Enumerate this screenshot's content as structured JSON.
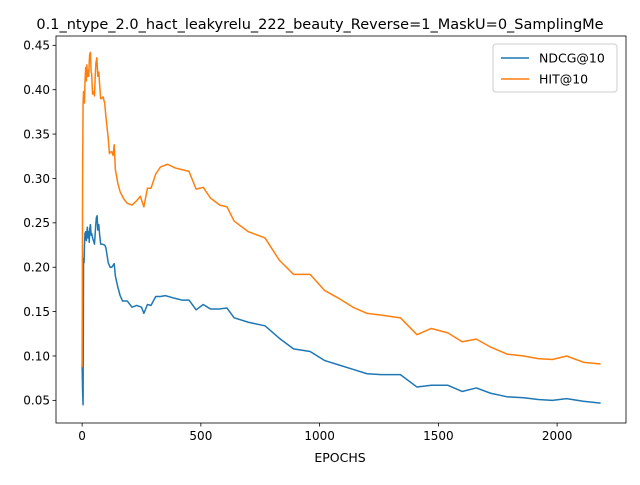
{
  "chart_data": {
    "type": "line",
    "title": "0.1_ntype_2.0_hact_leakyrelu_222_beauty_Reverse=1_MaskU=0_SamplingMe",
    "xlabel": "EPOCHS",
    "ylabel": "",
    "xlim": [
      -110,
      2290
    ],
    "ylim": [
      0.0245,
      0.4605
    ],
    "xticks": [
      0,
      500,
      1000,
      1500,
      2000
    ],
    "yticks": [
      0.05,
      0.1,
      0.15,
      0.2,
      0.25,
      0.3,
      0.35,
      0.4,
      0.45
    ],
    "grid": false,
    "legend_position": "top-right",
    "series": [
      {
        "name": "NDCG@10",
        "color": "#1f77b4",
        "points": [
          [
            0,
            0.09
          ],
          [
            2,
            0.06
          ],
          [
            4,
            0.045
          ],
          [
            6,
            0.21
          ],
          [
            8,
            0.205
          ],
          [
            10,
            0.225
          ],
          [
            12,
            0.238
          ],
          [
            15,
            0.24
          ],
          [
            18,
            0.23
          ],
          [
            20,
            0.238
          ],
          [
            22,
            0.245
          ],
          [
            25,
            0.233
          ],
          [
            28,
            0.24
          ],
          [
            30,
            0.228
          ],
          [
            32,
            0.243
          ],
          [
            35,
            0.248
          ],
          [
            38,
            0.236
          ],
          [
            40,
            0.238
          ],
          [
            45,
            0.232
          ],
          [
            50,
            0.228
          ],
          [
            52,
            0.226
          ],
          [
            55,
            0.238
          ],
          [
            58,
            0.25
          ],
          [
            60,
            0.256
          ],
          [
            63,
            0.258
          ],
          [
            66,
            0.242
          ],
          [
            70,
            0.248
          ],
          [
            74,
            0.236
          ],
          [
            78,
            0.226
          ],
          [
            85,
            0.226
          ],
          [
            95,
            0.225
          ],
          [
            100,
            0.222
          ],
          [
            110,
            0.205
          ],
          [
            118,
            0.2
          ],
          [
            125,
            0.2
          ],
          [
            130,
            0.202
          ],
          [
            135,
            0.204
          ],
          [
            140,
            0.19
          ],
          [
            150,
            0.178
          ],
          [
            160,
            0.168
          ],
          [
            170,
            0.162
          ],
          [
            190,
            0.162
          ],
          [
            210,
            0.155
          ],
          [
            230,
            0.157
          ],
          [
            250,
            0.155
          ],
          [
            260,
            0.148
          ],
          [
            275,
            0.158
          ],
          [
            290,
            0.157
          ],
          [
            310,
            0.167
          ],
          [
            330,
            0.167
          ],
          [
            350,
            0.168
          ],
          [
            390,
            0.165
          ],
          [
            420,
            0.163
          ],
          [
            450,
            0.163
          ],
          [
            480,
            0.152
          ],
          [
            510,
            0.158
          ],
          [
            540,
            0.153
          ],
          [
            580,
            0.153
          ],
          [
            610,
            0.154
          ],
          [
            640,
            0.143
          ],
          [
            700,
            0.138
          ],
          [
            770,
            0.134
          ],
          [
            830,
            0.12
          ],
          [
            890,
            0.108
          ],
          [
            960,
            0.105
          ],
          [
            1020,
            0.095
          ],
          [
            1080,
            0.09
          ],
          [
            1140,
            0.085
          ],
          [
            1200,
            0.08
          ],
          [
            1260,
            0.079
          ],
          [
            1340,
            0.079
          ],
          [
            1410,
            0.065
          ],
          [
            1470,
            0.067
          ],
          [
            1540,
            0.067
          ],
          [
            1600,
            0.06
          ],
          [
            1660,
            0.064
          ],
          [
            1720,
            0.058
          ],
          [
            1790,
            0.054
          ],
          [
            1860,
            0.053
          ],
          [
            1920,
            0.051
          ],
          [
            1980,
            0.05
          ],
          [
            2040,
            0.052
          ],
          [
            2110,
            0.049
          ],
          [
            2180,
            0.047
          ]
        ]
      },
      {
        "name": "HIT@10",
        "color": "#ff7f0e",
        "points": [
          [
            0,
            0.088
          ],
          [
            2,
            0.3
          ],
          [
            4,
            0.385
          ],
          [
            6,
            0.398
          ],
          [
            8,
            0.39
          ],
          [
            10,
            0.385
          ],
          [
            12,
            0.408
          ],
          [
            15,
            0.425
          ],
          [
            18,
            0.41
          ],
          [
            20,
            0.428
          ],
          [
            22,
            0.415
          ],
          [
            25,
            0.422
          ],
          [
            28,
            0.415
          ],
          [
            30,
            0.432
          ],
          [
            32,
            0.44
          ],
          [
            35,
            0.442
          ],
          [
            38,
            0.42
          ],
          [
            40,
            0.418
          ],
          [
            44,
            0.395
          ],
          [
            48,
            0.398
          ],
          [
            52,
            0.393
          ],
          [
            55,
            0.415
          ],
          [
            58,
            0.43
          ],
          [
            62,
            0.436
          ],
          [
            66,
            0.415
          ],
          [
            70,
            0.42
          ],
          [
            74,
            0.405
          ],
          [
            78,
            0.39
          ],
          [
            82,
            0.39
          ],
          [
            88,
            0.392
          ],
          [
            95,
            0.385
          ],
          [
            100,
            0.37
          ],
          [
            110,
            0.345
          ],
          [
            115,
            0.328
          ],
          [
            120,
            0.33
          ],
          [
            125,
            0.33
          ],
          [
            130,
            0.326
          ],
          [
            135,
            0.338
          ],
          [
            140,
            0.31
          ],
          [
            150,
            0.295
          ],
          [
            160,
            0.285
          ],
          [
            175,
            0.277
          ],
          [
            190,
            0.272
          ],
          [
            210,
            0.27
          ],
          [
            230,
            0.275
          ],
          [
            245,
            0.28
          ],
          [
            260,
            0.268
          ],
          [
            275,
            0.289
          ],
          [
            290,
            0.289
          ],
          [
            310,
            0.305
          ],
          [
            330,
            0.313
          ],
          [
            360,
            0.316
          ],
          [
            390,
            0.312
          ],
          [
            420,
            0.31
          ],
          [
            450,
            0.308
          ],
          [
            480,
            0.288
          ],
          [
            510,
            0.29
          ],
          [
            540,
            0.278
          ],
          [
            580,
            0.27
          ],
          [
            610,
            0.268
          ],
          [
            640,
            0.252
          ],
          [
            700,
            0.24
          ],
          [
            770,
            0.233
          ],
          [
            830,
            0.208
          ],
          [
            890,
            0.192
          ],
          [
            960,
            0.192
          ],
          [
            1020,
            0.174
          ],
          [
            1080,
            0.165
          ],
          [
            1140,
            0.155
          ],
          [
            1200,
            0.148
          ],
          [
            1260,
            0.146
          ],
          [
            1340,
            0.143
          ],
          [
            1410,
            0.124
          ],
          [
            1470,
            0.131
          ],
          [
            1540,
            0.126
          ],
          [
            1600,
            0.116
          ],
          [
            1660,
            0.119
          ],
          [
            1720,
            0.11
          ],
          [
            1790,
            0.102
          ],
          [
            1860,
            0.1
          ],
          [
            1920,
            0.097
          ],
          [
            1980,
            0.096
          ],
          [
            2040,
            0.1
          ],
          [
            2110,
            0.093
          ],
          [
            2180,
            0.091
          ]
        ]
      }
    ]
  }
}
